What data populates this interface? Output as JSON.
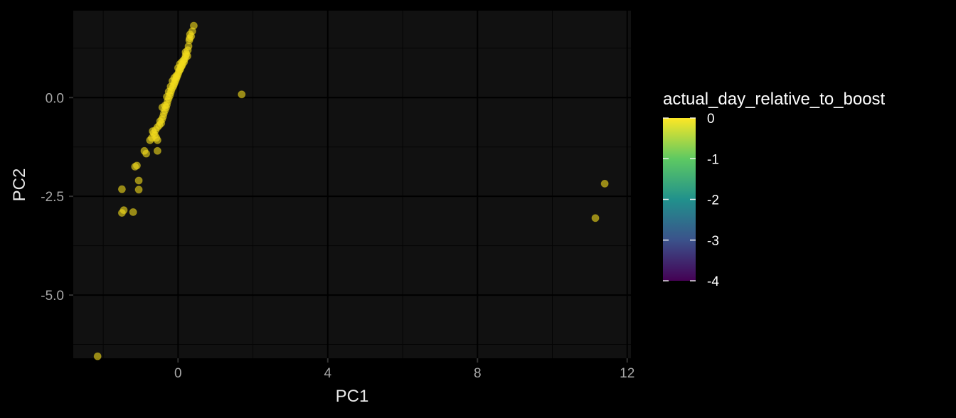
{
  "chart_data": {
    "type": "scatter",
    "title": "",
    "xlabel": "PC1",
    "ylabel": "PC2",
    "xlim": [
      -2.8,
      12.1
    ],
    "ylim": [
      -6.6,
      2.2
    ],
    "x_ticks": [
      0,
      4,
      8,
      12
    ],
    "x_tick_labels": [
      "0",
      "4",
      "8",
      "12"
    ],
    "x_minor_ticks": [
      -2,
      2,
      6,
      10
    ],
    "y_ticks": [
      0.0,
      -2.5,
      -5.0
    ],
    "y_tick_labels": [
      "0.0",
      "-2.5",
      "-5.0"
    ],
    "y_minor_ticks": [
      1.25,
      -1.25,
      -3.75,
      -6.25
    ],
    "grid": true,
    "point_color": "#f4dc1c",
    "point_opacity": 0.6,
    "panel_background": "#111111",
    "page_background": "#000000",
    "gridline_major_color": "#000000",
    "gridline_minor_color": "#050505",
    "legend": {
      "title": "actual_day_relative_to_boost",
      "type": "colorbar",
      "placement": "right",
      "min": -4,
      "max": 0,
      "ticks": [
        0,
        -1,
        -2,
        -3,
        -4
      ],
      "tick_labels": [
        "0",
        "-1",
        "-2",
        "-3",
        "-4"
      ],
      "colormap": "viridis",
      "colors": [
        "#440154",
        "#3b528b",
        "#21918c",
        "#5ec962",
        "#fde725"
      ]
    },
    "series": [
      {
        "color_value": 0,
        "x": [
          0.42,
          0.38,
          0.35,
          0.31,
          0.3,
          0.28,
          0.26,
          0.22,
          0.2,
          0.18,
          0.16,
          0.12,
          0.1,
          0.08,
          0.06,
          0.04,
          0.02,
          0.0,
          -0.02,
          -0.04,
          -0.06,
          -0.08,
          -0.1,
          -0.12,
          -0.15,
          -0.18,
          -0.2,
          -0.22,
          -0.25,
          -0.28,
          -0.3,
          -0.32,
          -0.35,
          -0.38,
          -0.4,
          -0.43,
          -0.48,
          -0.5,
          -0.55,
          -0.6,
          -0.65,
          -0.7,
          -0.75,
          -0.9,
          -0.85,
          -1.1,
          -1.05,
          -1.15,
          -1.05,
          -1.5,
          -1.45,
          -1.5,
          -1.2,
          -0.55,
          -2.15,
          1.7,
          11.4,
          11.15,
          0.25,
          0.15,
          0.05,
          -0.05,
          -0.15,
          -0.25,
          -0.3,
          -0.35,
          -0.2,
          -0.1,
          0.0,
          0.1,
          0.2,
          0.32,
          -0.45,
          -0.55,
          -0.58,
          -0.62,
          -0.68,
          -0.42
        ],
        "y": [
          1.82,
          1.68,
          1.55,
          1.5,
          1.45,
          1.3,
          1.2,
          1.1,
          1.05,
          0.98,
          0.9,
          0.85,
          0.8,
          0.78,
          0.72,
          0.7,
          0.65,
          0.6,
          0.55,
          0.5,
          0.45,
          0.4,
          0.35,
          0.3,
          0.25,
          0.18,
          0.12,
          0.05,
          -0.02,
          -0.1,
          -0.18,
          -0.25,
          -0.32,
          -0.4,
          -0.48,
          -0.55,
          -0.6,
          -0.7,
          -0.75,
          -0.82,
          -0.9,
          -1.02,
          -1.08,
          -1.35,
          -1.42,
          -1.72,
          -2.1,
          -1.75,
          -2.33,
          -2.32,
          -2.85,
          -2.92,
          -2.9,
          -1.35,
          -6.55,
          0.08,
          -2.18,
          -3.05,
          1.05,
          0.95,
          0.85,
          0.55,
          0.42,
          0.15,
          0.02,
          -0.2,
          0.28,
          0.5,
          0.75,
          0.9,
          1.15,
          1.6,
          -0.65,
          -1.08,
          -1.02,
          -0.95,
          -0.85,
          -0.25
        ]
      }
    ]
  }
}
